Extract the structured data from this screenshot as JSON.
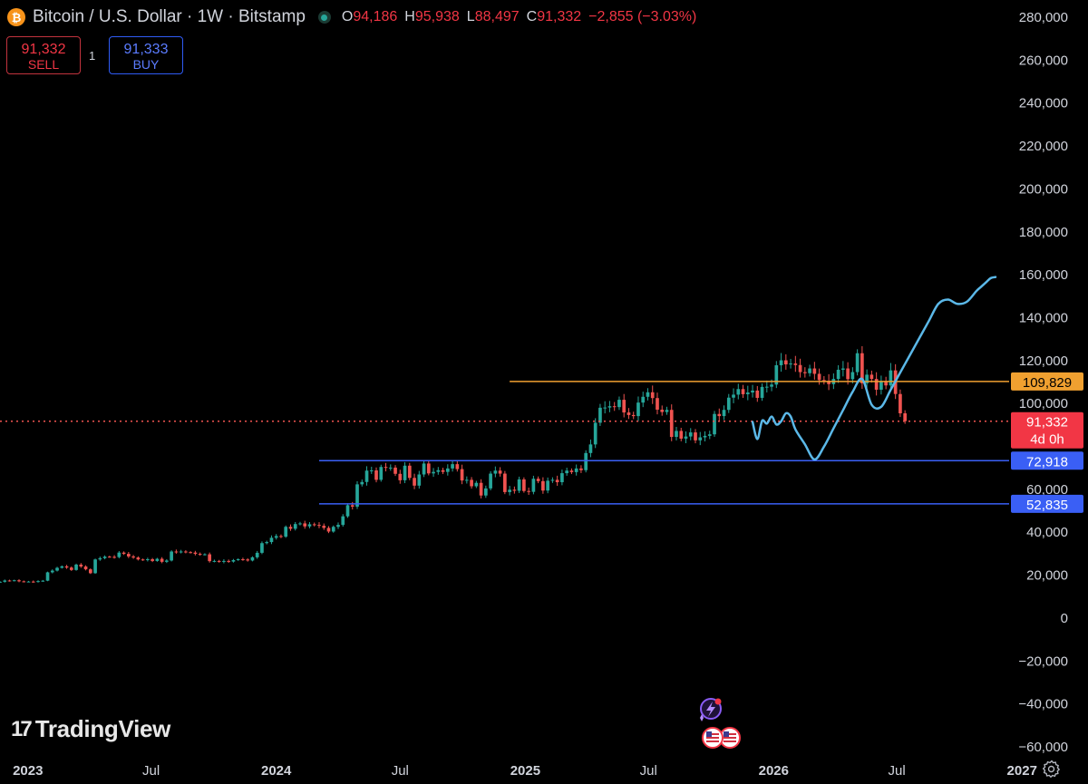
{
  "header": {
    "symbol": "Bitcoin / U.S. Dollar · 1W · Bitstamp",
    "open_label": "O",
    "open": "94,186",
    "high_label": "H",
    "high": "95,938",
    "low_label": "L",
    "low": "88,497",
    "close_label": "C",
    "close": "91,332",
    "change": "−2,855 (−3.03%)",
    "coin_icon": "bitcoin-icon",
    "status_color": "#26a69a"
  },
  "trade": {
    "sell_price": "91,332",
    "sell_label": "SELL",
    "buy_price": "91,333",
    "buy_label": "BUY",
    "quantity": "1"
  },
  "branding": {
    "logo_text": "TradingView"
  },
  "colors": {
    "up": "#26a69a",
    "down": "#ef5350",
    "forecast": "#5bb8e8",
    "resistance": "#f0a030",
    "support": "#3a5ff5",
    "price_line": "#ef5350"
  },
  "chart_data": {
    "type": "candlestick",
    "timeframe": "1W",
    "ylim": [
      -60000,
      280000
    ],
    "xlim": [
      "2022-11-21",
      "2027-01-18"
    ],
    "y_ticks": [
      "280,000",
      "260,000",
      "240,000",
      "220,000",
      "200,000",
      "180,000",
      "160,000",
      "140,000",
      "120,000",
      "100,000",
      "60,000",
      "40,000",
      "20,000",
      "0",
      "−20,000",
      "−40,000",
      "−60,000"
    ],
    "y_tick_values": [
      280000,
      260000,
      240000,
      220000,
      200000,
      180000,
      160000,
      140000,
      120000,
      100000,
      60000,
      40000,
      20000,
      0,
      -20000,
      -40000,
      -60000
    ],
    "x_ticks": [
      {
        "label": "2023",
        "date": "2023-01-01",
        "bold": true
      },
      {
        "label": "Jul",
        "date": "2023-07-01",
        "bold": false
      },
      {
        "label": "2024",
        "date": "2024-01-01",
        "bold": true
      },
      {
        "label": "Jul",
        "date": "2024-07-01",
        "bold": false
      },
      {
        "label": "2025",
        "date": "2025-01-01",
        "bold": true
      },
      {
        "label": "Jul",
        "date": "2025-07-01",
        "bold": false
      },
      {
        "label": "2026",
        "date": "2026-01-01",
        "bold": true
      },
      {
        "label": "Jul",
        "date": "2026-07-01",
        "bold": false
      },
      {
        "label": "2027",
        "date": "2027-01-01",
        "bold": true
      }
    ],
    "candle_closes": {
      "start": "2022-11-21",
      "interval_days": 7,
      "values": [
        16500,
        17100,
        16900,
        17200,
        16700,
        16550,
        16600,
        16500,
        16800,
        17000,
        20900,
        21700,
        23000,
        23700,
        23100,
        22000,
        24500,
        23600,
        22300,
        20500,
        26900,
        27500,
        28200,
        28100,
        28000,
        30100,
        29500,
        28300,
        27800,
        26900,
        26600,
        27000,
        26200,
        27200,
        25800,
        26400,
        30600,
        30400,
        30600,
        30300,
        30100,
        29500,
        29200,
        29300,
        26100,
        26200,
        25800,
        26200,
        25900,
        26600,
        27000,
        26900,
        26400,
        27900,
        30000,
        34500,
        35000,
        37000,
        37800,
        37500,
        42100,
        41200,
        43400,
        43700,
        42300,
        43300,
        43000,
        42600,
        41600,
        39900,
        42100,
        43000,
        47000,
        52200,
        51500,
        61900,
        63000,
        68300,
        68400,
        64000,
        70000,
        69600,
        69700,
        66800,
        63800,
        70600,
        64900,
        61300,
        66500,
        71600,
        67000,
        67700,
        68500,
        67700,
        69300,
        71300,
        69000,
        63700,
        64000,
        61000,
        62600,
        56700,
        60000,
        66900,
        68300,
        66900,
        58300,
        59400,
        58900,
        64200,
        58800,
        58400,
        64500,
        63400,
        59000,
        63600,
        64000,
        62900,
        67100,
        68300,
        67600,
        69300,
        68500,
        76500,
        80500,
        90600,
        97600,
        97700,
        98300,
        97900,
        101300,
        95400,
        94200,
        93700,
        100000,
        102700,
        104800,
        102100,
        96700,
        95600,
        96600,
        84000,
        86800,
        83200,
        84200,
        86100,
        82400,
        83800,
        84500,
        85200,
        94700,
        93700,
        96600,
        102300,
        103700,
        106300,
        103900,
        104700,
        105600,
        102200,
        107300,
        107400,
        108400,
        117400,
        119700,
        117800,
        118200,
        117500,
        114200,
        113700,
        115900,
        113400,
        110500,
        110100,
        108600,
        111000,
        115300,
        115900,
        110900,
        114200,
        123000,
        109000,
        113000,
        111000,
        106000,
        110000,
        108000,
        115000,
        104000,
        95000,
        91332
      ]
    },
    "forecast": {
      "dates": [
        "2025-12-01",
        "2025-12-08",
        "2025-12-15",
        "2025-12-22",
        "2025-12-29",
        "2026-01-05",
        "2026-01-12",
        "2026-01-19",
        "2026-01-26",
        "2026-02-02",
        "2026-02-16",
        "2026-03-02",
        "2026-03-16",
        "2026-03-30",
        "2026-04-13",
        "2026-04-27",
        "2026-05-11",
        "2026-05-25",
        "2026-06-08",
        "2026-06-22",
        "2026-07-06",
        "2026-07-20",
        "2026-08-03",
        "2026-08-17",
        "2026-08-31",
        "2026-09-14",
        "2026-09-28",
        "2026-10-12",
        "2026-10-26",
        "2026-11-02",
        "2026-11-09",
        "2026-11-16",
        "2026-11-23"
      ],
      "values": [
        91000,
        83000,
        91500,
        90200,
        93500,
        89800,
        91300,
        95000,
        93500,
        87500,
        80500,
        73500,
        79500,
        88000,
        96500,
        105000,
        111000,
        99000,
        98000,
        106000,
        114000,
        122000,
        130000,
        138000,
        146000,
        148000,
        146000,
        147000,
        152000,
        154000,
        156000,
        158000,
        158500
      ]
    },
    "levels": [
      {
        "value": 109829,
        "label": "109,829",
        "color": "#f0a030",
        "text_color": "#000000",
        "start": "2024-12-09"
      },
      {
        "value": 72918,
        "label": "72,918",
        "color": "#3a5ff5",
        "text_color": "#ffffff",
        "start": "2024-03-04"
      },
      {
        "value": 52835,
        "label": "52,835",
        "color": "#3a5ff5",
        "text_color": "#ffffff",
        "start": "2024-03-04"
      }
    ],
    "current_price": {
      "value": 91332,
      "label": "91,332",
      "countdown": "4d 0h",
      "color": "#ef5350"
    }
  }
}
